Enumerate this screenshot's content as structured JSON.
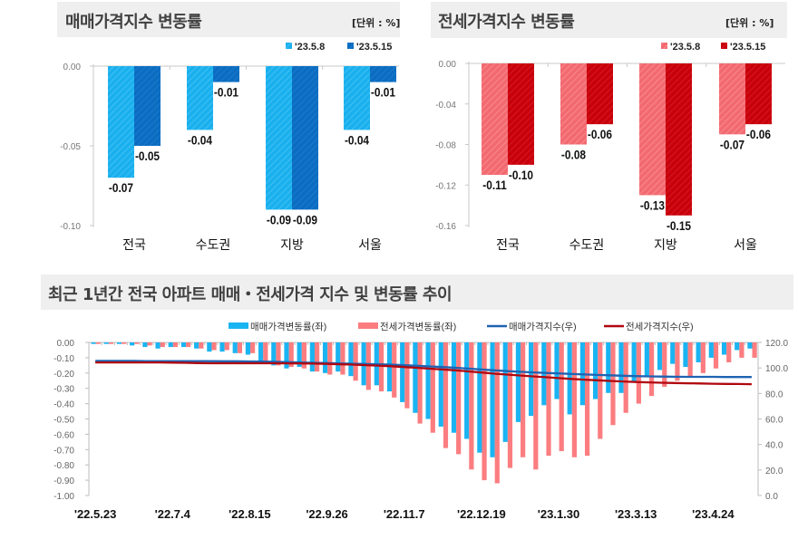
{
  "chart_data": [
    {
      "type": "bar",
      "title": "매매가격지수 변동률",
      "unit_label": "[단위 : %]",
      "categories": [
        "전국",
        "수도권",
        "지방",
        "서울"
      ],
      "series": [
        {
          "name": "'23.5.8",
          "values": [
            -0.07,
            -0.04,
            -0.09,
            -0.04
          ],
          "color": "#1ab0ee"
        },
        {
          "name": "'23.5.15",
          "values": [
            -0.05,
            -0.01,
            -0.09,
            -0.01
          ],
          "color": "#0b6cc0"
        }
      ],
      "data_labels": [
        [
          "-0.07",
          "-0.04",
          "-0.09",
          "-0.04"
        ],
        [
          "-0.05",
          "-0.01",
          "-0.09",
          "-0.01"
        ]
      ],
      "ylim": [
        -0.1,
        0.0
      ],
      "yticks": [
        "0.00",
        "-0.05",
        "-0.10"
      ],
      "legend": "top-right",
      "grid": false
    },
    {
      "type": "bar",
      "title": "전세가격지수 변동률",
      "unit_label": "[단위 : %]",
      "categories": [
        "전국",
        "수도권",
        "지방",
        "서울"
      ],
      "series": [
        {
          "name": "'23.5.8",
          "values": [
            -0.11,
            -0.08,
            -0.13,
            -0.07
          ],
          "color": "#f26a70"
        },
        {
          "name": "'23.5.15",
          "values": [
            -0.1,
            -0.06,
            -0.15,
            -0.06
          ],
          "color": "#c8000b"
        }
      ],
      "data_labels": [
        [
          "-0.11",
          "-0.08",
          "-0.13",
          "-0.07"
        ],
        [
          "-0.10",
          "-0.06",
          "-0.15",
          "-0.06"
        ]
      ],
      "ylim": [
        -0.16,
        0.0
      ],
      "yticks": [
        "0.00",
        "-0.04",
        "-0.08",
        "-0.12",
        "-0.16"
      ],
      "legend": "top-right",
      "grid": false
    },
    {
      "type": "bar+line",
      "title": "최근 1년간 전국 아파트 매매・전세가격 지수 및 변동률 추이",
      "x_tick_labels": [
        "'22.5.23",
        "'22.7.4",
        "'22.8.15",
        "'22.9.26",
        "'22.11.7",
        "'22.12.19",
        "'23.1.30",
        "'23.3.13",
        "'23.4.24"
      ],
      "x_tick_every_weeks": 6,
      "weeks": 52,
      "ylim_left": [
        -1.0,
        0.0
      ],
      "yticks_left": [
        "0.00",
        "-0.10",
        "-0.20",
        "-0.30",
        "-0.40",
        "-0.50",
        "-0.60",
        "-0.70",
        "-0.80",
        "-0.90",
        "-1.00"
      ],
      "ylim_right": [
        0.0,
        120.0
      ],
      "yticks_right": [
        "120.0",
        "100.0",
        "80.0",
        "60.0",
        "40.0",
        "20.0",
        "0.0"
      ],
      "legend": "top",
      "series": [
        {
          "name": "매매가격변동률(좌)",
          "kind": "bar",
          "axis": "left",
          "color": "#1bb4f2",
          "values": [
            -0.01,
            -0.01,
            -0.01,
            -0.02,
            -0.03,
            -0.04,
            -0.03,
            -0.03,
            -0.04,
            -0.06,
            -0.06,
            -0.07,
            -0.08,
            -0.13,
            -0.15,
            -0.17,
            -0.16,
            -0.19,
            -0.2,
            -0.19,
            -0.22,
            -0.28,
            -0.28,
            -0.32,
            -0.39,
            -0.46,
            -0.5,
            -0.55,
            -0.59,
            -0.63,
            -0.72,
            -0.75,
            -0.65,
            -0.52,
            -0.48,
            -0.41,
            -0.37,
            -0.47,
            -0.41,
            -0.37,
            -0.33,
            -0.33,
            -0.26,
            -0.22,
            -0.18,
            -0.14,
            -0.16,
            -0.13,
            -0.1,
            -0.08,
            -0.05,
            -0.04
          ]
        },
        {
          "name": "전세가격변동률(좌)",
          "kind": "bar",
          "axis": "left",
          "color": "#fb7d80",
          "values": [
            -0.01,
            -0.01,
            -0.01,
            -0.01,
            -0.02,
            -0.03,
            -0.03,
            -0.03,
            -0.04,
            -0.05,
            -0.05,
            -0.07,
            -0.07,
            -0.13,
            -0.15,
            -0.16,
            -0.17,
            -0.19,
            -0.21,
            -0.21,
            -0.25,
            -0.31,
            -0.32,
            -0.36,
            -0.43,
            -0.53,
            -0.59,
            -0.69,
            -0.73,
            -0.83,
            -0.9,
            -0.92,
            -0.82,
            -0.75,
            -0.83,
            -0.74,
            -0.71,
            -0.75,
            -0.74,
            -0.63,
            -0.54,
            -0.46,
            -0.4,
            -0.35,
            -0.29,
            -0.25,
            -0.22,
            -0.2,
            -0.17,
            -0.13,
            -0.1,
            -0.1
          ]
        },
        {
          "name": "매매가격지수(우)",
          "kind": "line",
          "axis": "right",
          "color": "#1f63b2",
          "values": [
            105.5,
            105.5,
            105.5,
            105.5,
            105.4,
            105.4,
            105.4,
            105.3,
            105.3,
            105.3,
            105.2,
            105.2,
            105.1,
            105.0,
            104.8,
            104.5,
            104.3,
            104.0,
            103.8,
            103.5,
            103.3,
            103.1,
            102.9,
            102.6,
            102.2,
            101.7,
            101.2,
            100.7,
            100.1,
            99.5,
            98.8,
            98.1,
            97.5,
            97.0,
            96.5,
            96.1,
            95.7,
            95.3,
            94.9,
            94.5,
            94.2,
            93.9,
            93.6,
            93.4,
            93.2,
            93.1,
            93.0,
            93.0,
            93.0,
            92.9,
            92.9,
            92.9
          ]
        },
        {
          "name": "전세가격지수(우)",
          "kind": "line",
          "axis": "right",
          "color": "#b0070f",
          "values": [
            104.3,
            104.3,
            104.3,
            104.3,
            104.3,
            104.3,
            104.2,
            104.0,
            103.8,
            103.7,
            103.7,
            103.7,
            103.7,
            103.7,
            103.7,
            103.6,
            103.5,
            103.4,
            103.2,
            102.9,
            102.6,
            102.2,
            101.8,
            101.3,
            100.7,
            100.1,
            99.4,
            98.8,
            98.1,
            97.3,
            96.4,
            95.5,
            94.8,
            94.1,
            93.4,
            92.7,
            92.0,
            91.4,
            90.8,
            90.3,
            89.8,
            89.4,
            89.0,
            88.7,
            88.4,
            88.2,
            88.0,
            87.8,
            87.6,
            87.5,
            87.4,
            87.3
          ]
        }
      ]
    }
  ]
}
